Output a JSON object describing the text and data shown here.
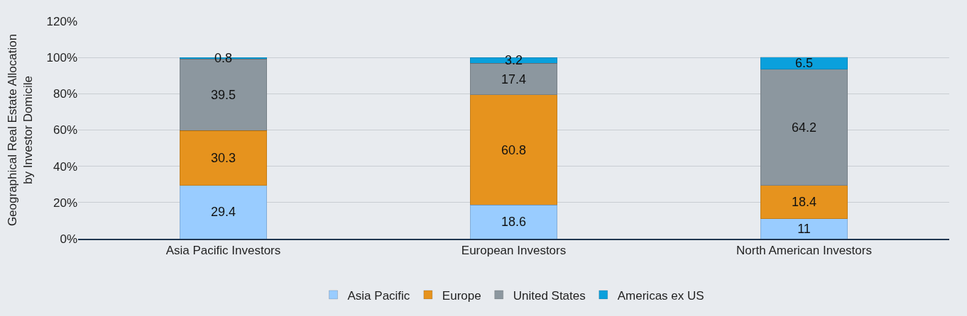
{
  "chart_data": {
    "type": "bar",
    "stacked": true,
    "ylabel": "Geographical Real Estate Allocation\nby Investor Domicile",
    "categories": [
      "Asia Pacific Investors",
      "European Investors",
      "North American Investors"
    ],
    "series": [
      {
        "name": "Asia Pacific",
        "color": "#99ccff",
        "values": [
          29.4,
          18.6,
          11
        ]
      },
      {
        "name": "Europe",
        "color": "#e6931e",
        "values": [
          30.3,
          60.8,
          18.4
        ]
      },
      {
        "name": "United States",
        "color": "#8c979f",
        "values": [
          39.5,
          17.4,
          64.2
        ]
      },
      {
        "name": "Americas ex US",
        "color": "#0aa0dc",
        "values": [
          0.8,
          3.2,
          6.5
        ]
      }
    ],
    "ylim": [
      0,
      120
    ],
    "yticks": [
      {
        "value": 0,
        "label": "0%"
      },
      {
        "value": 20,
        "label": "20%"
      },
      {
        "value": 40,
        "label": "40%"
      },
      {
        "value": 60,
        "label": "60%"
      },
      {
        "value": 80,
        "label": "80%"
      },
      {
        "value": 100,
        "label": "100%"
      },
      {
        "value": 120,
        "label": "120%"
      }
    ],
    "grid": "y",
    "legend": "bottom",
    "data_labels": true
  }
}
